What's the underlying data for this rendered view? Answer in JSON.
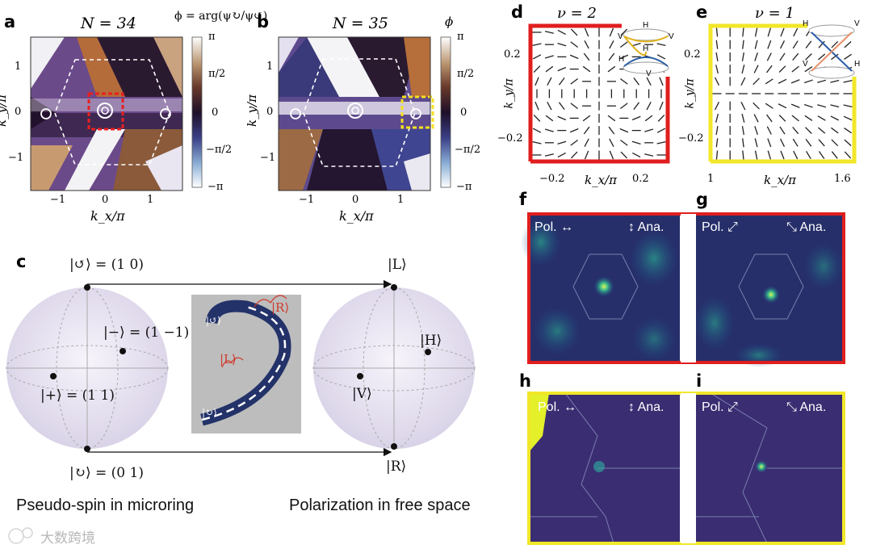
{
  "panels": {
    "a": {
      "label": "a",
      "title": "N = 34",
      "xlabel": "k_x/π",
      "ylabel": "k_y/π",
      "xticks": [
        "−1",
        "0",
        "1"
      ],
      "yticks": [
        "1",
        "0",
        "−1"
      ],
      "colorbar_title": "ϕ = arg(ψ↻/ψ↺)",
      "colorbar_ticks": [
        "π",
        "π/2",
        "0",
        "−π/2",
        "−π"
      ]
    },
    "b": {
      "label": "b",
      "title": "N = 35",
      "xlabel": "k_x/π",
      "ylabel": "k_y/π",
      "xticks": [
        "−1",
        "0",
        "1"
      ],
      "yticks": [
        "1",
        "0",
        "−1"
      ],
      "colorbar_title": "ϕ",
      "colorbar_ticks": [
        "π",
        "π/2",
        "0",
        "−π/2",
        "−π"
      ]
    },
    "c": {
      "label": "c",
      "left_sphere": {
        "top": "|↺⟩ = (1 0)",
        "minus": "|−⟩ = (1 −1)",
        "plus": "|+⟩ = (1 1)",
        "bottom": "|↻⟩ = (0 1)"
      },
      "right_sphere": {
        "top": "|L⟩",
        "h": "|H⟩",
        "v": "|V⟩",
        "bottom": "|R⟩"
      },
      "inset": {
        "R": "|R⟩",
        "L": "|L⟩",
        "ccw": "|↺⟩",
        "cw": "|↻⟩"
      },
      "caption_left": "Pseudo-spin in microring",
      "caption_right": "Polarization in free space"
    },
    "d": {
      "label": "d",
      "nu": "ν = 2",
      "xlabel": "k_x/π",
      "ylabel": "k_y/π",
      "xticks": [
        "−0.2",
        "0.2"
      ],
      "yticks": [
        "0.2",
        "−0.2"
      ],
      "cone": [
        "H",
        "V",
        "H",
        "V",
        "H",
        "V"
      ]
    },
    "e": {
      "label": "e",
      "nu": "ν = 1",
      "xlabel": "k_x/π",
      "ylabel": "k_y/π",
      "xticks": [
        "1",
        "1.6"
      ],
      "yticks": [
        "0.2",
        "−0.2"
      ],
      "cone": [
        "H",
        "V",
        "V",
        "H"
      ]
    },
    "f": {
      "label": "f",
      "pol": "Pol. ↔",
      "ana": "↕ Ana."
    },
    "g": {
      "label": "g",
      "pol": "Pol. ⤢",
      "ana": "⤡ Ana."
    },
    "h": {
      "label": "h",
      "pol": "Pol. ↔",
      "ana": "↕ Ana."
    },
    "i": {
      "label": "i",
      "pol": "Pol. ⤢",
      "ana": "⤡ Ana."
    }
  },
  "watermark": "大数跨境",
  "colors": {
    "red": "#e01e1e",
    "yellow": "#f2e62a",
    "phase_dark": "#2b1436",
    "phase_orange": "#9a5a2a"
  }
}
